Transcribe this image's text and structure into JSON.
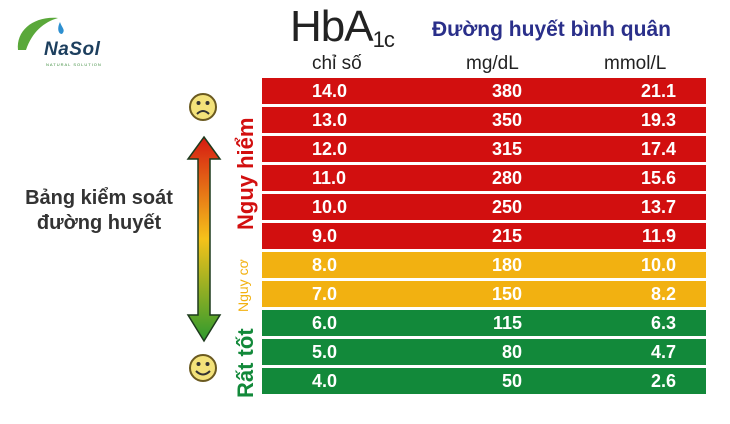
{
  "brand": {
    "name": "NaSol",
    "tagline": "NATURAL SOLUTION"
  },
  "header": {
    "hba_main": "HbA",
    "hba_sub": "1c",
    "avg_title": "Đường huyết bình quân",
    "col_index": "chỉ số",
    "col_mgdl": "mg/dL",
    "col_mmol": "mmol/L"
  },
  "side_title": {
    "line1": "Bảng kiểm soát",
    "line2": "đường huyết"
  },
  "zones": {
    "danger": "Nguy hiểm",
    "risk": "Nguy cơ",
    "good": "Rất tốt"
  },
  "colors": {
    "danger": "#d20f0f",
    "risk": "#f2b111",
    "good": "#12893a",
    "title_blue": "#2a2f8a"
  },
  "rows": [
    {
      "hba1c": "14.0",
      "mgdl": "380",
      "mmol": "21.1",
      "zone": "danger"
    },
    {
      "hba1c": "13.0",
      "mgdl": "350",
      "mmol": "19.3",
      "zone": "danger"
    },
    {
      "hba1c": "12.0",
      "mgdl": "315",
      "mmol": "17.4",
      "zone": "danger"
    },
    {
      "hba1c": "11.0",
      "mgdl": "280",
      "mmol": "15.6",
      "zone": "danger"
    },
    {
      "hba1c": "10.0",
      "mgdl": "250",
      "mmol": "13.7",
      "zone": "danger"
    },
    {
      "hba1c": "9.0",
      "mgdl": "215",
      "mmol": "11.9",
      "zone": "danger"
    },
    {
      "hba1c": "8.0",
      "mgdl": "180",
      "mmol": "10.0",
      "zone": "risk"
    },
    {
      "hba1c": "7.0",
      "mgdl": "150",
      "mmol": "8.2",
      "zone": "risk"
    },
    {
      "hba1c": "6.0",
      "mgdl": "115",
      "mmol": "6.3",
      "zone": "good"
    },
    {
      "hba1c": "5.0",
      "mgdl": "80",
      "mmol": "4.7",
      "zone": "good"
    },
    {
      "hba1c": "4.0",
      "mgdl": "50",
      "mmol": "2.6",
      "zone": "good"
    }
  ],
  "chart_data": {
    "type": "table",
    "title": "HbA1c – Đường huyết bình quân",
    "columns": [
      "HbA1c chỉ số",
      "mg/dL",
      "mmol/L"
    ],
    "rows": [
      [
        14.0,
        380,
        21.1
      ],
      [
        13.0,
        350,
        19.3
      ],
      [
        12.0,
        315,
        17.4
      ],
      [
        11.0,
        280,
        15.6
      ],
      [
        10.0,
        250,
        13.7
      ],
      [
        9.0,
        215,
        11.9
      ],
      [
        8.0,
        180,
        10.0
      ],
      [
        7.0,
        150,
        8.2
      ],
      [
        6.0,
        115,
        6.3
      ],
      [
        5.0,
        80,
        4.7
      ],
      [
        4.0,
        50,
        2.6
      ]
    ],
    "zones": [
      {
        "label": "Nguy hiểm",
        "range": [
          9.0,
          14.0
        ],
        "color": "#d20f0f"
      },
      {
        "label": "Nguy cơ",
        "range": [
          7.0,
          8.0
        ],
        "color": "#f2b111"
      },
      {
        "label": "Rất tốt",
        "range": [
          4.0,
          6.0
        ],
        "color": "#12893a"
      }
    ]
  }
}
